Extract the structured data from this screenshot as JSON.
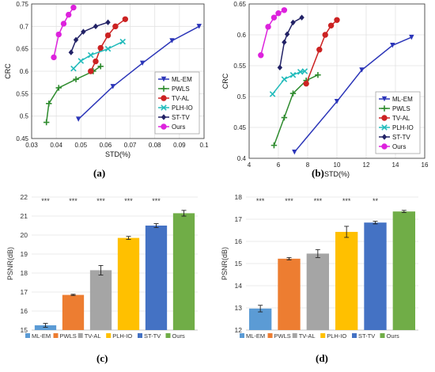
{
  "chart_data": [
    {
      "id": "a",
      "type": "line",
      "caption": "(a)",
      "xlabel": "STD(%)",
      "ylabel": "CRC",
      "xlim": [
        0.03,
        0.1
      ],
      "ylim": [
        0.45,
        0.75
      ],
      "xticks": [
        "0.03",
        "0.04",
        "0.05",
        "0.06",
        "0.07",
        "0.08",
        "0.09",
        "0.1"
      ],
      "yticks": [
        "0.45",
        "0.5",
        "0.55",
        "0.6",
        "0.65",
        "0.7",
        "0.75"
      ],
      "legend": "inside-lower-right",
      "series": [
        {
          "name": "ML-EM",
          "color": "#2b35b8",
          "marker": "tri-down",
          "points": [
            [
              0.049,
              0.493
            ],
            [
              0.063,
              0.566
            ],
            [
              0.075,
              0.618
            ],
            [
              0.087,
              0.668
            ],
            [
              0.098,
              0.7
            ]
          ]
        },
        {
          "name": "PWLS",
          "color": "#2e8b2e",
          "marker": "plus",
          "points": [
            [
              0.036,
              0.486
            ],
            [
              0.037,
              0.528
            ],
            [
              0.041,
              0.563
            ],
            [
              0.048,
              0.582
            ],
            [
              0.055,
              0.6
            ],
            [
              0.058,
              0.611
            ]
          ]
        },
        {
          "name": "TV-AL",
          "color": "#cc2222",
          "marker": "circle",
          "points": [
            [
              0.054,
              0.6
            ],
            [
              0.056,
              0.622
            ],
            [
              0.058,
              0.652
            ],
            [
              0.061,
              0.68
            ],
            [
              0.064,
              0.7
            ],
            [
              0.068,
              0.716
            ]
          ]
        },
        {
          "name": "PLH-IO",
          "color": "#22bbbb",
          "marker": "x",
          "points": [
            [
              0.047,
              0.606
            ],
            [
              0.05,
              0.623
            ],
            [
              0.054,
              0.636
            ],
            [
              0.061,
              0.65
            ],
            [
              0.067,
              0.666
            ]
          ]
        },
        {
          "name": "ST-TV",
          "color": "#222266",
          "marker": "diamond",
          "points": [
            [
              0.046,
              0.642
            ],
            [
              0.048,
              0.67
            ],
            [
              0.051,
              0.688
            ],
            [
              0.056,
              0.7
            ],
            [
              0.061,
              0.709
            ]
          ]
        },
        {
          "name": "Ours",
          "color": "#dd22dd",
          "marker": "circle",
          "points": [
            [
              0.039,
              0.631
            ],
            [
              0.041,
              0.682
            ],
            [
              0.043,
              0.706
            ],
            [
              0.045,
              0.726
            ],
            [
              0.047,
              0.742
            ]
          ]
        }
      ]
    },
    {
      "id": "b",
      "type": "line",
      "caption": "(b)",
      "xlabel": "STD(%)",
      "ylabel": "CRC",
      "xlim": [
        4,
        16
      ],
      "ylim": [
        0.4,
        0.65
      ],
      "xticks": [
        "4",
        "6",
        "8",
        "10",
        "12",
        "14",
        "16"
      ],
      "yticks": [
        "0.4",
        "0.45",
        "0.5",
        "0.55",
        "0.6",
        "0.65"
      ],
      "legend": "inside-lower-right",
      "series": [
        {
          "name": "ML-EM",
          "color": "#2b35b8",
          "marker": "tri-down",
          "points": [
            [
              7.1,
              0.41
            ],
            [
              10.0,
              0.492
            ],
            [
              11.7,
              0.543
            ],
            [
              13.8,
              0.583
            ],
            [
              15.1,
              0.596
            ]
          ]
        },
        {
          "name": "PWLS",
          "color": "#2e8b2e",
          "marker": "plus",
          "points": [
            [
              5.7,
              0.421
            ],
            [
              6.4,
              0.466
            ],
            [
              7.0,
              0.505
            ],
            [
              7.9,
              0.526
            ],
            [
              8.7,
              0.535
            ]
          ]
        },
        {
          "name": "TV-AL",
          "color": "#cc2222",
          "marker": "circle",
          "points": [
            [
              7.9,
              0.521
            ],
            [
              8.8,
              0.576
            ],
            [
              9.2,
              0.6
            ],
            [
              9.6,
              0.615
            ],
            [
              10.0,
              0.624
            ]
          ]
        },
        {
          "name": "PLH-IO",
          "color": "#22bbbb",
          "marker": "x",
          "points": [
            [
              5.6,
              0.504
            ],
            [
              6.4,
              0.528
            ],
            [
              7.0,
              0.535
            ],
            [
              7.5,
              0.54
            ],
            [
              7.8,
              0.541
            ]
          ]
        },
        {
          "name": "ST-TV",
          "color": "#222266",
          "marker": "diamond",
          "points": [
            [
              6.1,
              0.547
            ],
            [
              6.4,
              0.588
            ],
            [
              6.6,
              0.601
            ],
            [
              7.0,
              0.62
            ],
            [
              7.6,
              0.628
            ]
          ]
        },
        {
          "name": "Ours",
          "color": "#dd22dd",
          "marker": "circle",
          "points": [
            [
              4.8,
              0.567
            ],
            [
              5.3,
              0.613
            ],
            [
              5.7,
              0.628
            ],
            [
              6.0,
              0.635
            ],
            [
              6.4,
              0.64
            ]
          ]
        }
      ]
    },
    {
      "id": "c",
      "type": "bar",
      "caption": "(c)",
      "ylabel": "PSNR(dB)",
      "ylim": [
        15,
        22
      ],
      "yticks": [
        "15",
        "16",
        "17",
        "18",
        "19",
        "20",
        "21",
        "22"
      ],
      "categories": [
        "ML-EM",
        "PWLS",
        "TV-AL",
        "PLH-IO",
        "ST-TV",
        "Ours"
      ],
      "colors": [
        "#5b9bd5",
        "#ed7d31",
        "#a5a5a5",
        "#ffc000",
        "#4472c4",
        "#70ad47"
      ],
      "values": [
        15.25,
        16.85,
        18.15,
        19.85,
        20.5,
        21.15
      ],
      "errors": [
        0.1,
        0.03,
        0.25,
        0.08,
        0.1,
        0.15
      ],
      "significance": [
        "***",
        "***",
        "***",
        "***",
        "***"
      ],
      "legend": "bottom"
    },
    {
      "id": "d",
      "type": "bar",
      "caption": "(d)",
      "ylabel": "PSNR(dB)",
      "ylim": [
        12,
        18
      ],
      "yticks": [
        "12",
        "13",
        "14",
        "15",
        "16",
        "17",
        "18"
      ],
      "categories": [
        "ML-EM",
        "PWLS",
        "TV-AL",
        "PLH-IO",
        "ST-TV",
        "Ours"
      ],
      "colors": [
        "#5b9bd5",
        "#ed7d31",
        "#a5a5a5",
        "#ffc000",
        "#4472c4",
        "#70ad47"
      ],
      "values": [
        12.97,
        15.22,
        15.45,
        16.43,
        16.85,
        17.35
      ],
      "errors": [
        0.15,
        0.05,
        0.18,
        0.25,
        0.06,
        0.05
      ],
      "significance": [
        "***",
        "***",
        "***",
        "***",
        "**"
      ],
      "legend": "bottom"
    }
  ]
}
